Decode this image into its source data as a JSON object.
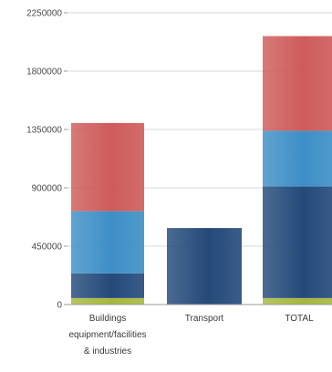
{
  "chart_data": {
    "type": "bar",
    "stacked": true,
    "categories": [
      [
        "Buildings",
        "equipment/facilities",
        "& industries"
      ],
      [
        "Transport"
      ],
      [
        "TOTAL"
      ]
    ],
    "series": [
      {
        "color": "#a7b83d",
        "values": [
          50000,
          0,
          50000
        ]
      },
      {
        "color": "#244a7a",
        "values": [
          190000,
          590000,
          860000
        ]
      },
      {
        "color": "#3d8fc6",
        "values": [
          480000,
          0,
          430000
        ]
      },
      {
        "color": "#cf5b5b",
        "values": [
          680000,
          0,
          730000
        ]
      }
    ],
    "yticks": [
      "0",
      "450000",
      "900000",
      "1350000",
      "1800000",
      "2250000"
    ],
    "ylim": [
      0,
      2250000
    ],
    "grid": true
  }
}
